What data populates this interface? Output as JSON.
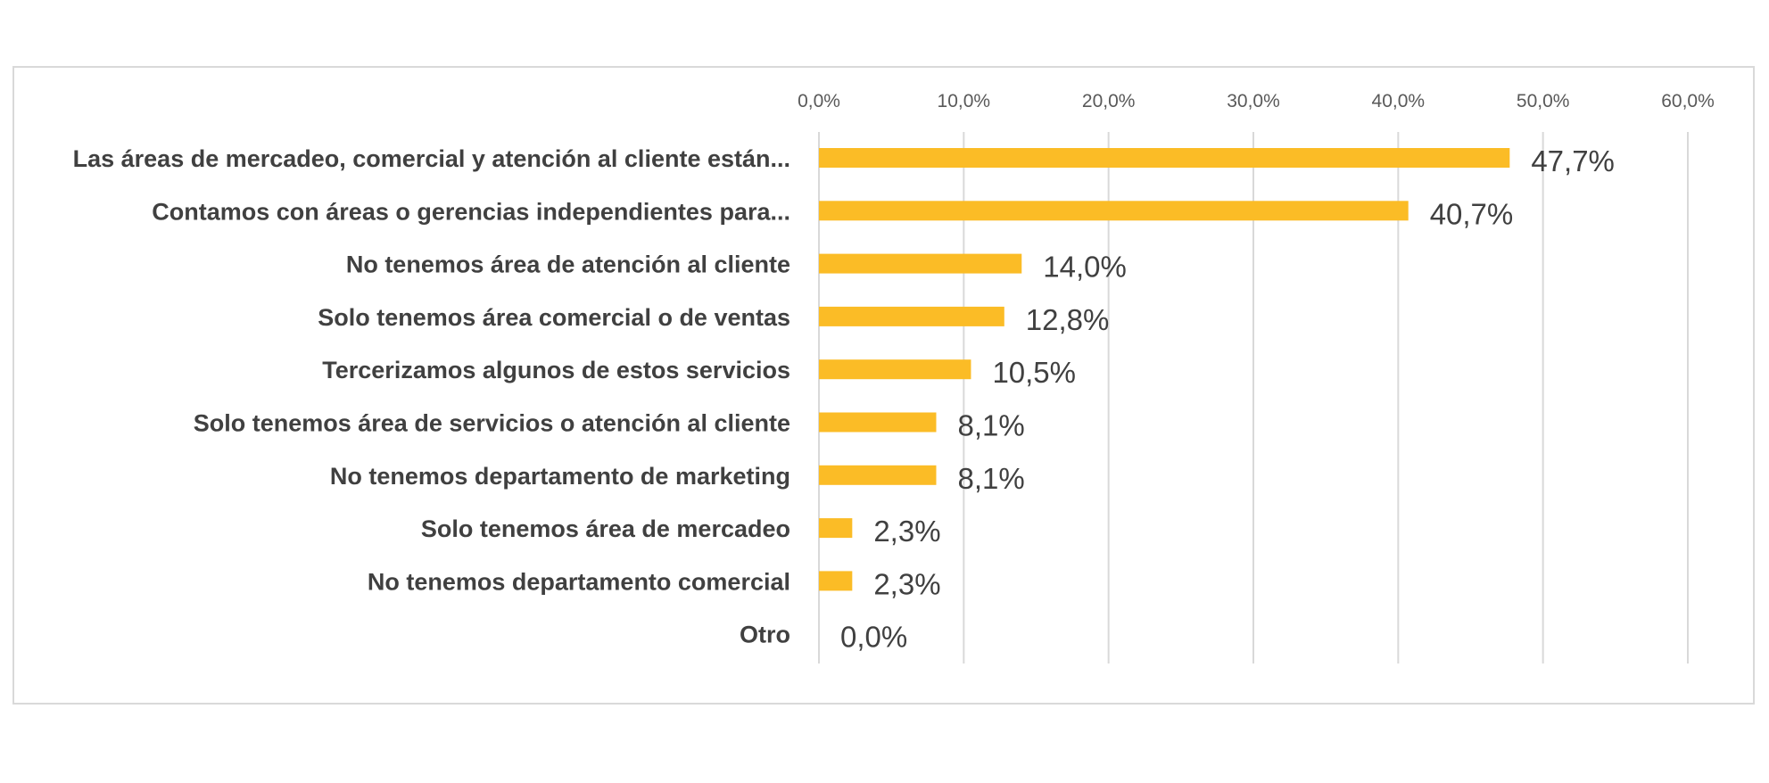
{
  "chart_data": {
    "type": "bar",
    "orientation": "horizontal",
    "categories": [
      "Las áreas de mercadeo, comercial y atención al cliente están...",
      "Contamos con áreas o gerencias independientes para...",
      "No tenemos área de atención al cliente",
      "Solo tenemos área comercial o de ventas",
      "Tercerizamos algunos de estos servicios",
      "Solo tenemos área de servicios o atención al cliente",
      "No tenemos departamento de marketing",
      "Solo tenemos área de mercadeo",
      "No tenemos departamento comercial",
      "Otro"
    ],
    "values": [
      47.7,
      40.7,
      14.0,
      12.8,
      10.5,
      8.1,
      8.1,
      2.3,
      2.3,
      0.0
    ],
    "data_labels": [
      "47,7%",
      "40,7%",
      "14,0%",
      "12,8%",
      "10,5%",
      "8,1%",
      "8,1%",
      "2,3%",
      "2,3%",
      "0,0%"
    ],
    "xlim": [
      0,
      60
    ],
    "x_ticks": [
      0,
      10,
      20,
      30,
      40,
      50,
      60
    ],
    "x_tick_labels": [
      "0,0%",
      "10,0%",
      "20,0%",
      "30,0%",
      "40,0%",
      "50,0%",
      "60,0%"
    ],
    "axis_position": "top",
    "grid": true,
    "title": "",
    "xlabel": "",
    "ylabel": "",
    "bar_color": "#FBBC26",
    "grid_color": "#d9d9d9"
  }
}
